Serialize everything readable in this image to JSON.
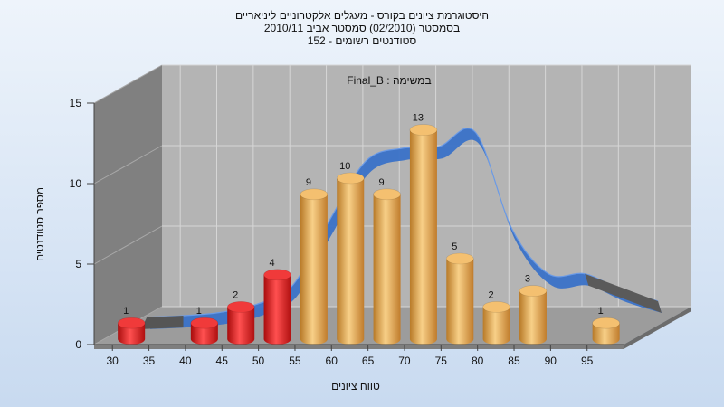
{
  "chart_data": {
    "type": "bar",
    "title_lines": [
      "היסטוגרמת ציונים בקורס - מעגלים אלקטרוניים ליניאריים",
      "בסמסטר  (02/2010)  סמסטר אביב 2010/11",
      "סטודנטים רשומים - 152"
    ],
    "assignment_label": "במשימה : Final_B",
    "xlabel": "טווח ציונים",
    "ylabel": "מספר סטודנטים",
    "x_ticks": [
      "30",
      "35",
      "40",
      "45",
      "50",
      "55",
      "60",
      "65",
      "70",
      "75",
      "80",
      "85",
      "90",
      "95"
    ],
    "y_ticks": [
      "0",
      "5",
      "10",
      "15"
    ],
    "ylim": [
      0,
      15
    ],
    "grid": true,
    "bars": [
      {
        "x": 30,
        "value": 1,
        "label": "1",
        "color": "red"
      },
      {
        "x": 40,
        "value": 1,
        "label": "1",
        "color": "red"
      },
      {
        "x": 45,
        "value": 2,
        "label": "2",
        "color": "red"
      },
      {
        "x": 50,
        "value": 4,
        "label": "4",
        "color": "red"
      },
      {
        "x": 55,
        "value": 9,
        "label": "9",
        "color": "gold"
      },
      {
        "x": 60,
        "value": 10,
        "label": "10",
        "color": "gold"
      },
      {
        "x": 65,
        "value": 9,
        "label": "9",
        "color": "gold"
      },
      {
        "x": 70,
        "value": 13,
        "label": "13",
        "color": "gold"
      },
      {
        "x": 75,
        "value": 5,
        "label": "5",
        "color": "gold"
      },
      {
        "x": 80,
        "value": 2,
        "label": "2",
        "color": "gold"
      },
      {
        "x": 85,
        "value": 3,
        "label": "3",
        "color": "gold"
      },
      {
        "x": 95,
        "value": 1,
        "label": "1",
        "color": "gold"
      }
    ],
    "distribution_curve": {
      "x": [
        30,
        35,
        40,
        45,
        50,
        55,
        60,
        65,
        70,
        75,
        80,
        85,
        90,
        95,
        100
      ],
      "y": [
        0.5,
        0.6,
        0.8,
        1.3,
        2.5,
        6.5,
        10.2,
        11.0,
        11.1,
        12.0,
        6.0,
        3.2,
        3.2,
        2.2,
        1.5
      ]
    },
    "colors": {
      "red_bar": "#e02020",
      "gold_bar": "#e8a848",
      "curve": "#3a72c8",
      "back_wall": "#b4b4b4",
      "side_wall": "#808080",
      "floor": "#9c9c9c"
    }
  }
}
